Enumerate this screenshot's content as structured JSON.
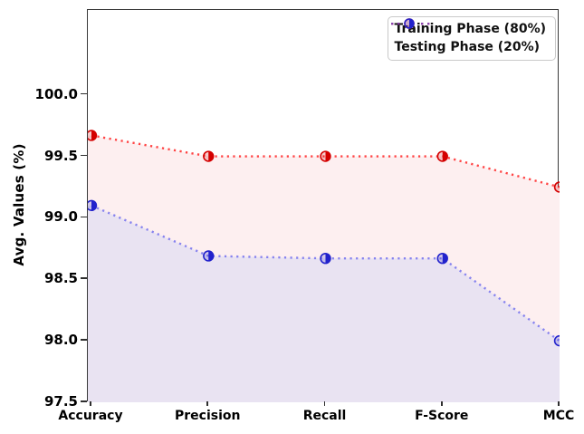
{
  "window": {
    "background": "#ffffff"
  },
  "chart_data": {
    "type": "line",
    "title": "",
    "xlabel": "",
    "ylabel": "Avg. Values (%)",
    "categories": [
      "Accuracy",
      "Precision",
      "Recall",
      "F-Score",
      "MCC"
    ],
    "series": [
      {
        "name": "Training Phase (80%)",
        "line_color": "#ff1111",
        "line_opacity": 0.78,
        "marker_color": "#d40000",
        "area_color": "#fdeff0",
        "values": [
          99.67,
          99.5,
          99.5,
          99.5,
          99.25
        ]
      },
      {
        "name": "Testing Phase (20%)",
        "line_color": "#4444ee",
        "line_opacity": 0.62,
        "marker_color": "#2222cc",
        "area_color": "#e9e3f2",
        "values": [
          99.1,
          98.69,
          98.67,
          98.67,
          98.0
        ]
      }
    ],
    "yticks": [
      "97.5",
      "98.0",
      "98.5",
      "99.0",
      "99.5",
      "100.0"
    ],
    "ylim": [
      97.5,
      100.69
    ],
    "line_style": "dotted",
    "marker": "half-filled-circle",
    "grid": false,
    "legend_position": "upper-right"
  }
}
